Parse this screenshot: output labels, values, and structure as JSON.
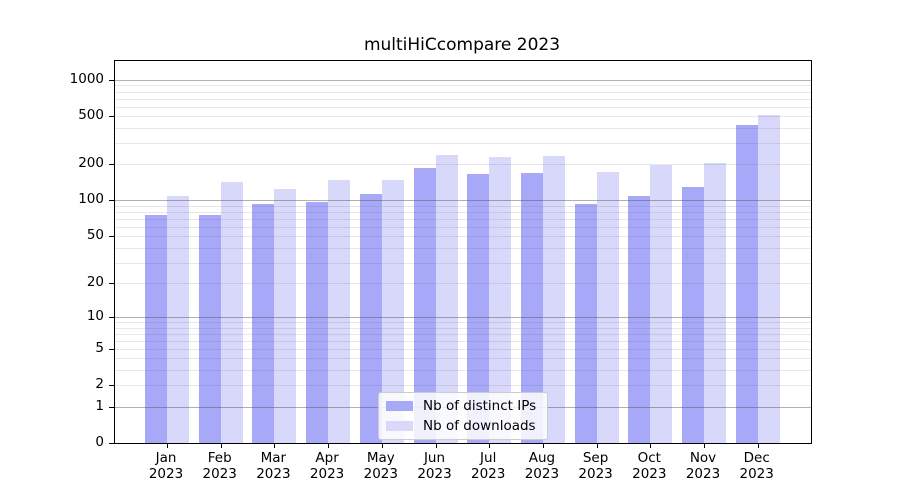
{
  "chart_data": {
    "type": "bar",
    "title": "multiHiCcompare 2023",
    "categories": [
      "Jan",
      "Feb",
      "Mar",
      "Apr",
      "May",
      "Jun",
      "Jul",
      "Aug",
      "Sep",
      "Oct",
      "Nov",
      "Dec"
    ],
    "year": "2023",
    "series": [
      {
        "name": "Nb of distinct IPs",
        "color": "#a8a8f8",
        "values": [
          75,
          76,
          93,
          97,
          113,
          188,
          165,
          169,
          94,
          108,
          129,
          426
        ]
      },
      {
        "name": "Nb of downloads",
        "color": "#d8d8fa",
        "values": [
          108,
          142,
          124,
          149,
          148,
          240,
          230,
          233,
          173,
          198,
          206,
          510
        ]
      }
    ],
    "yscale": "log10(1+v)",
    "ylim": [
      0,
      1435
    ],
    "yticks": [
      0,
      1,
      2,
      5,
      10,
      20,
      50,
      100,
      200,
      500,
      1000
    ],
    "grid_major": [
      1,
      10,
      100,
      1000
    ],
    "grid_minor": [
      2,
      3,
      4,
      5,
      6,
      7,
      8,
      9,
      20,
      30,
      40,
      50,
      60,
      70,
      80,
      90,
      200,
      300,
      400,
      500,
      600,
      700,
      800,
      900
    ],
    "grid_on": true,
    "legend_position": "lower center",
    "axis_color": "#000000",
    "grid_major_color": "#b0b0b0",
    "grid_minor_color": "#e8e8e8",
    "background_color": "#ffffff"
  }
}
